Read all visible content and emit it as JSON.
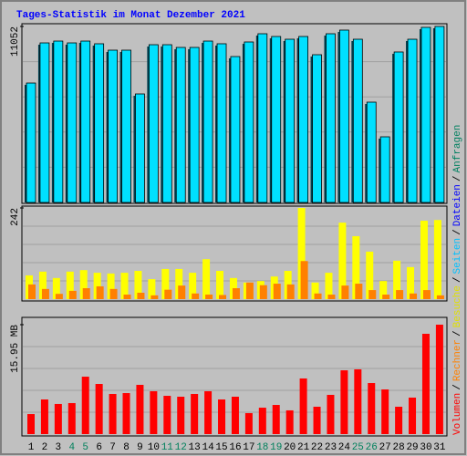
{
  "title": "Tages-Statistik im Monat Dezember 2021",
  "side_legend": [
    {
      "text": "Volumen",
      "color": "#ff0000"
    },
    {
      "text": "Rechner",
      "color": "#ff8000"
    },
    {
      "text": "Besuche",
      "color": "#e0e000"
    },
    {
      "text": "Seiten",
      "color": "#00c0ff"
    },
    {
      "text": "Dateien",
      "color": "#0000ff"
    },
    {
      "text": "Anfragen",
      "color": "#008060"
    }
  ],
  "side_legend_separator": "/",
  "chart_data": [
    {
      "type": "bar",
      "ylim": [
        0,
        11052
      ],
      "yticks": [
        11052
      ],
      "series": [
        {
          "color": "#00e0ff",
          "values": [
            7500,
            10020,
            10135,
            10020,
            10135,
            9965,
            9563,
            9563,
            6814,
            9906,
            9906,
            9735,
            9735,
            10135,
            9965,
            9162,
            10078,
            10594,
            10422,
            10250,
            10422,
            9277,
            10594,
            10823,
            10250,
            6299,
            4123,
            9449,
            10250,
            10995,
            11052
          ]
        }
      ]
    },
    {
      "type": "bar",
      "ylim": [
        0,
        242
      ],
      "yticks": [
        242
      ],
      "series": [
        {
          "color": "#ffff00",
          "values": [
            63,
            73,
            56,
            73,
            77,
            70,
            68,
            70,
            75,
            53,
            80,
            80,
            70,
            106,
            75,
            56,
            44,
            48,
            60,
            75,
            242,
            44,
            70,
            203,
            167,
            126,
            48,
            102,
            85,
            208,
            210
          ]
        },
        {
          "color": "#ff8000",
          "values": [
            39,
            27,
            14,
            22,
            29,
            34,
            27,
            12,
            17,
            10,
            25,
            36,
            15,
            12,
            11,
            29,
            44,
            37,
            41,
            39,
            101,
            15,
            12,
            36,
            41,
            24,
            12,
            24,
            15,
            24,
            10
          ]
        }
      ]
    },
    {
      "type": "bar",
      "ylim": [
        0,
        15.95
      ],
      "yticks": [
        {
          "value": 15.95,
          "label": "15.95 MB"
        }
      ],
      "categories": [
        "1",
        "2",
        "3",
        "4",
        "5",
        "6",
        "7",
        "8",
        "9",
        "10",
        "11",
        "12",
        "13",
        "14",
        "15",
        "16",
        "17",
        "18",
        "19",
        "20",
        "21",
        "22",
        "23",
        "24",
        "25",
        "26",
        "27",
        "28",
        "29",
        "30",
        "31"
      ],
      "category_colors": [
        "#000000",
        "#000000",
        "#000000",
        "#00805c",
        "#00805c",
        "#000000",
        "#000000",
        "#000000",
        "#000000",
        "#000000",
        "#00805c",
        "#00805c",
        "#000000",
        "#000000",
        "#000000",
        "#000000",
        "#000000",
        "#00805c",
        "#00805c",
        "#000000",
        "#000000",
        "#000000",
        "#000000",
        "#000000",
        "#00805c",
        "#00805c",
        "#000000",
        "#000000",
        "#000000",
        "#000000",
        "#000000"
      ],
      "series": [
        {
          "color": "#ff0000",
          "values": [
            2.92,
            5.05,
            4.39,
            4.52,
            8.37,
            7.31,
            5.85,
            5.98,
            7.18,
            6.25,
            5.58,
            5.45,
            5.85,
            6.25,
            5.05,
            5.45,
            3.06,
            3.85,
            4.25,
            3.46,
            8.11,
            3.99,
            5.72,
            9.3,
            9.44,
            7.44,
            6.51,
            3.99,
            5.32,
            14.62,
            15.95
          ]
        }
      ]
    }
  ]
}
